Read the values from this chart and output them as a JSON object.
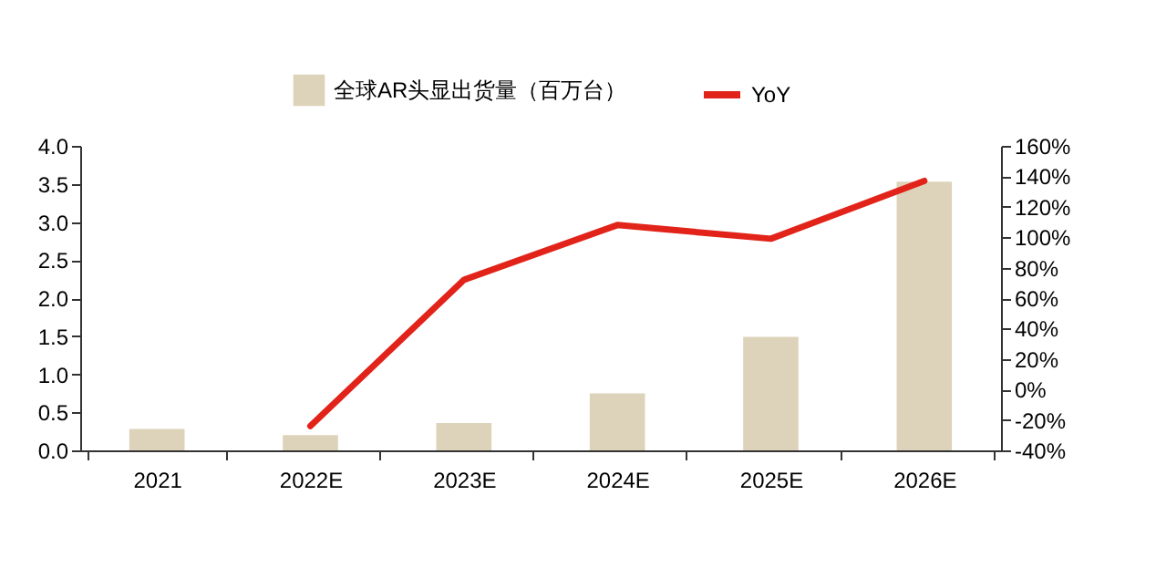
{
  "chart_data": {
    "type": "bar",
    "categories": [
      "2021",
      "2022E",
      "2023E",
      "2024E",
      "2025E",
      "2026E"
    ],
    "series": [
      {
        "name": "全球AR头显出货量（百万台）",
        "color": "#ddd3bb",
        "values": [
          0.28,
          0.2,
          0.36,
          0.75,
          1.49,
          3.53
        ]
      },
      {
        "name": "YoY",
        "type": "line",
        "axis": "y2",
        "color": "#e2231a",
        "values": [
          null,
          -24,
          72,
          108,
          99,
          137
        ]
      }
    ],
    "ylim": [
      0,
      4.0
    ],
    "yticks": [
      {
        "value": 0,
        "label": "0.0"
      },
      0.5,
      {
        "value": 1,
        "label": "1.0"
      },
      1.5,
      {
        "value": 2,
        "label": "2.0"
      },
      2.5,
      {
        "value": 3,
        "label": "3.0"
      },
      3.5,
      {
        "value": 4,
        "label": "4.0"
      }
    ],
    "y2lim": [
      -40,
      160
    ],
    "y2ticks": [
      {
        "value": -40,
        "label": "-40%"
      },
      {
        "value": -20,
        "label": "-20%"
      },
      {
        "value": 0,
        "label": "0%"
      },
      {
        "value": 20,
        "label": "20%"
      },
      {
        "value": 40,
        "label": "40%"
      },
      {
        "value": 60,
        "label": "60%"
      },
      {
        "value": 80,
        "label": "80%"
      },
      {
        "value": 100,
        "label": "100%"
      },
      {
        "value": 120,
        "label": "120%"
      },
      {
        "value": 140,
        "label": "140%"
      },
      {
        "value": 160,
        "label": "160%"
      }
    ],
    "grid": false,
    "legend": "top",
    "marker": "none",
    "line_style": "solid"
  }
}
